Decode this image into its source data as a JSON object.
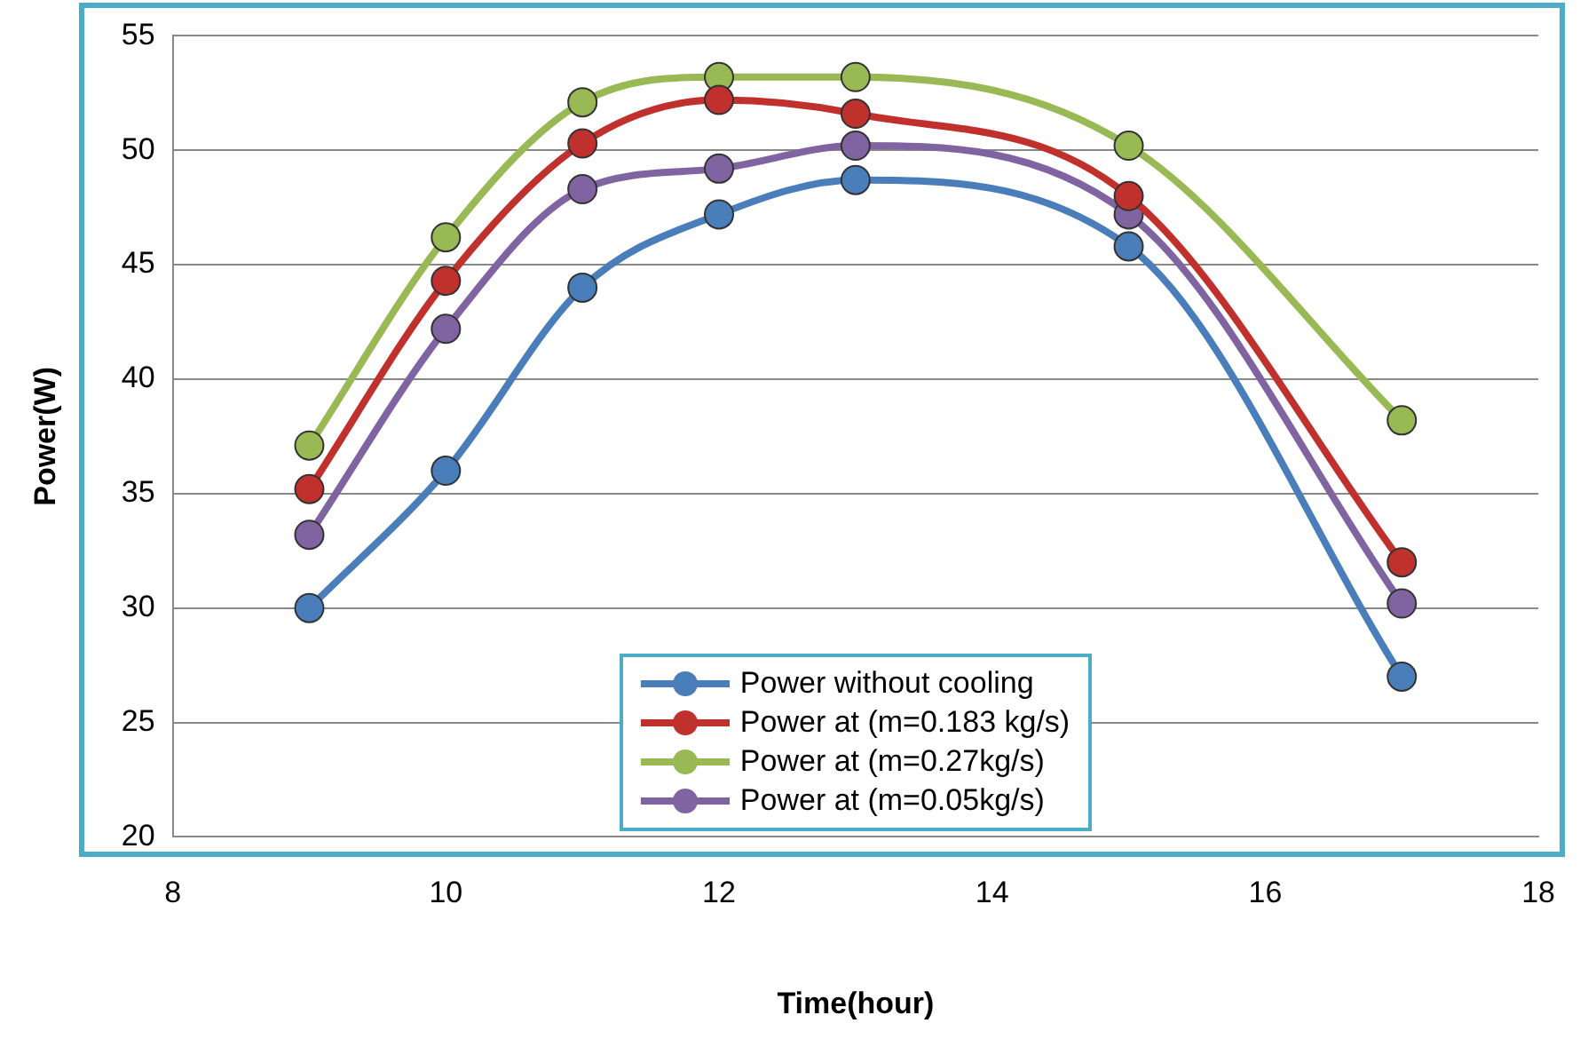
{
  "chart_data": {
    "type": "line",
    "xlabel": "Time(hour)",
    "ylabel": "Power(W)",
    "x": [
      9,
      10,
      11,
      12,
      13,
      15,
      17
    ],
    "series": [
      {
        "name": "Power without cooling",
        "color": "#4a7ebb",
        "values": [
          30,
          36,
          44,
          47.2,
          48.7,
          45.8,
          27
        ]
      },
      {
        "name": "Power at (m=0.183 kg/s)",
        "color": "#c0302c",
        "values": [
          35.2,
          44.3,
          50.3,
          52.2,
          51.6,
          48,
          32
        ]
      },
      {
        "name": "Power at (m=0.27kg/s)",
        "color": "#98b954",
        "values": [
          37.1,
          46.2,
          52.1,
          53.2,
          53.2,
          50.2,
          38.2
        ]
      },
      {
        "name": "Power at (m=0.05kg/s)",
        "color": "#8064a2",
        "values": [
          33.2,
          42.2,
          48.3,
          49.2,
          50.2,
          47.2,
          30.2
        ]
      }
    ],
    "xlim": [
      8,
      18
    ],
    "xticks": [
      8,
      10,
      12,
      14,
      16,
      18
    ],
    "ylim": [
      20,
      55
    ],
    "yticks": [
      20,
      25,
      30,
      35,
      40,
      45,
      50,
      55
    ],
    "grid": "y",
    "legend": "bottom",
    "marker": "circle",
    "line_style": "solid"
  }
}
